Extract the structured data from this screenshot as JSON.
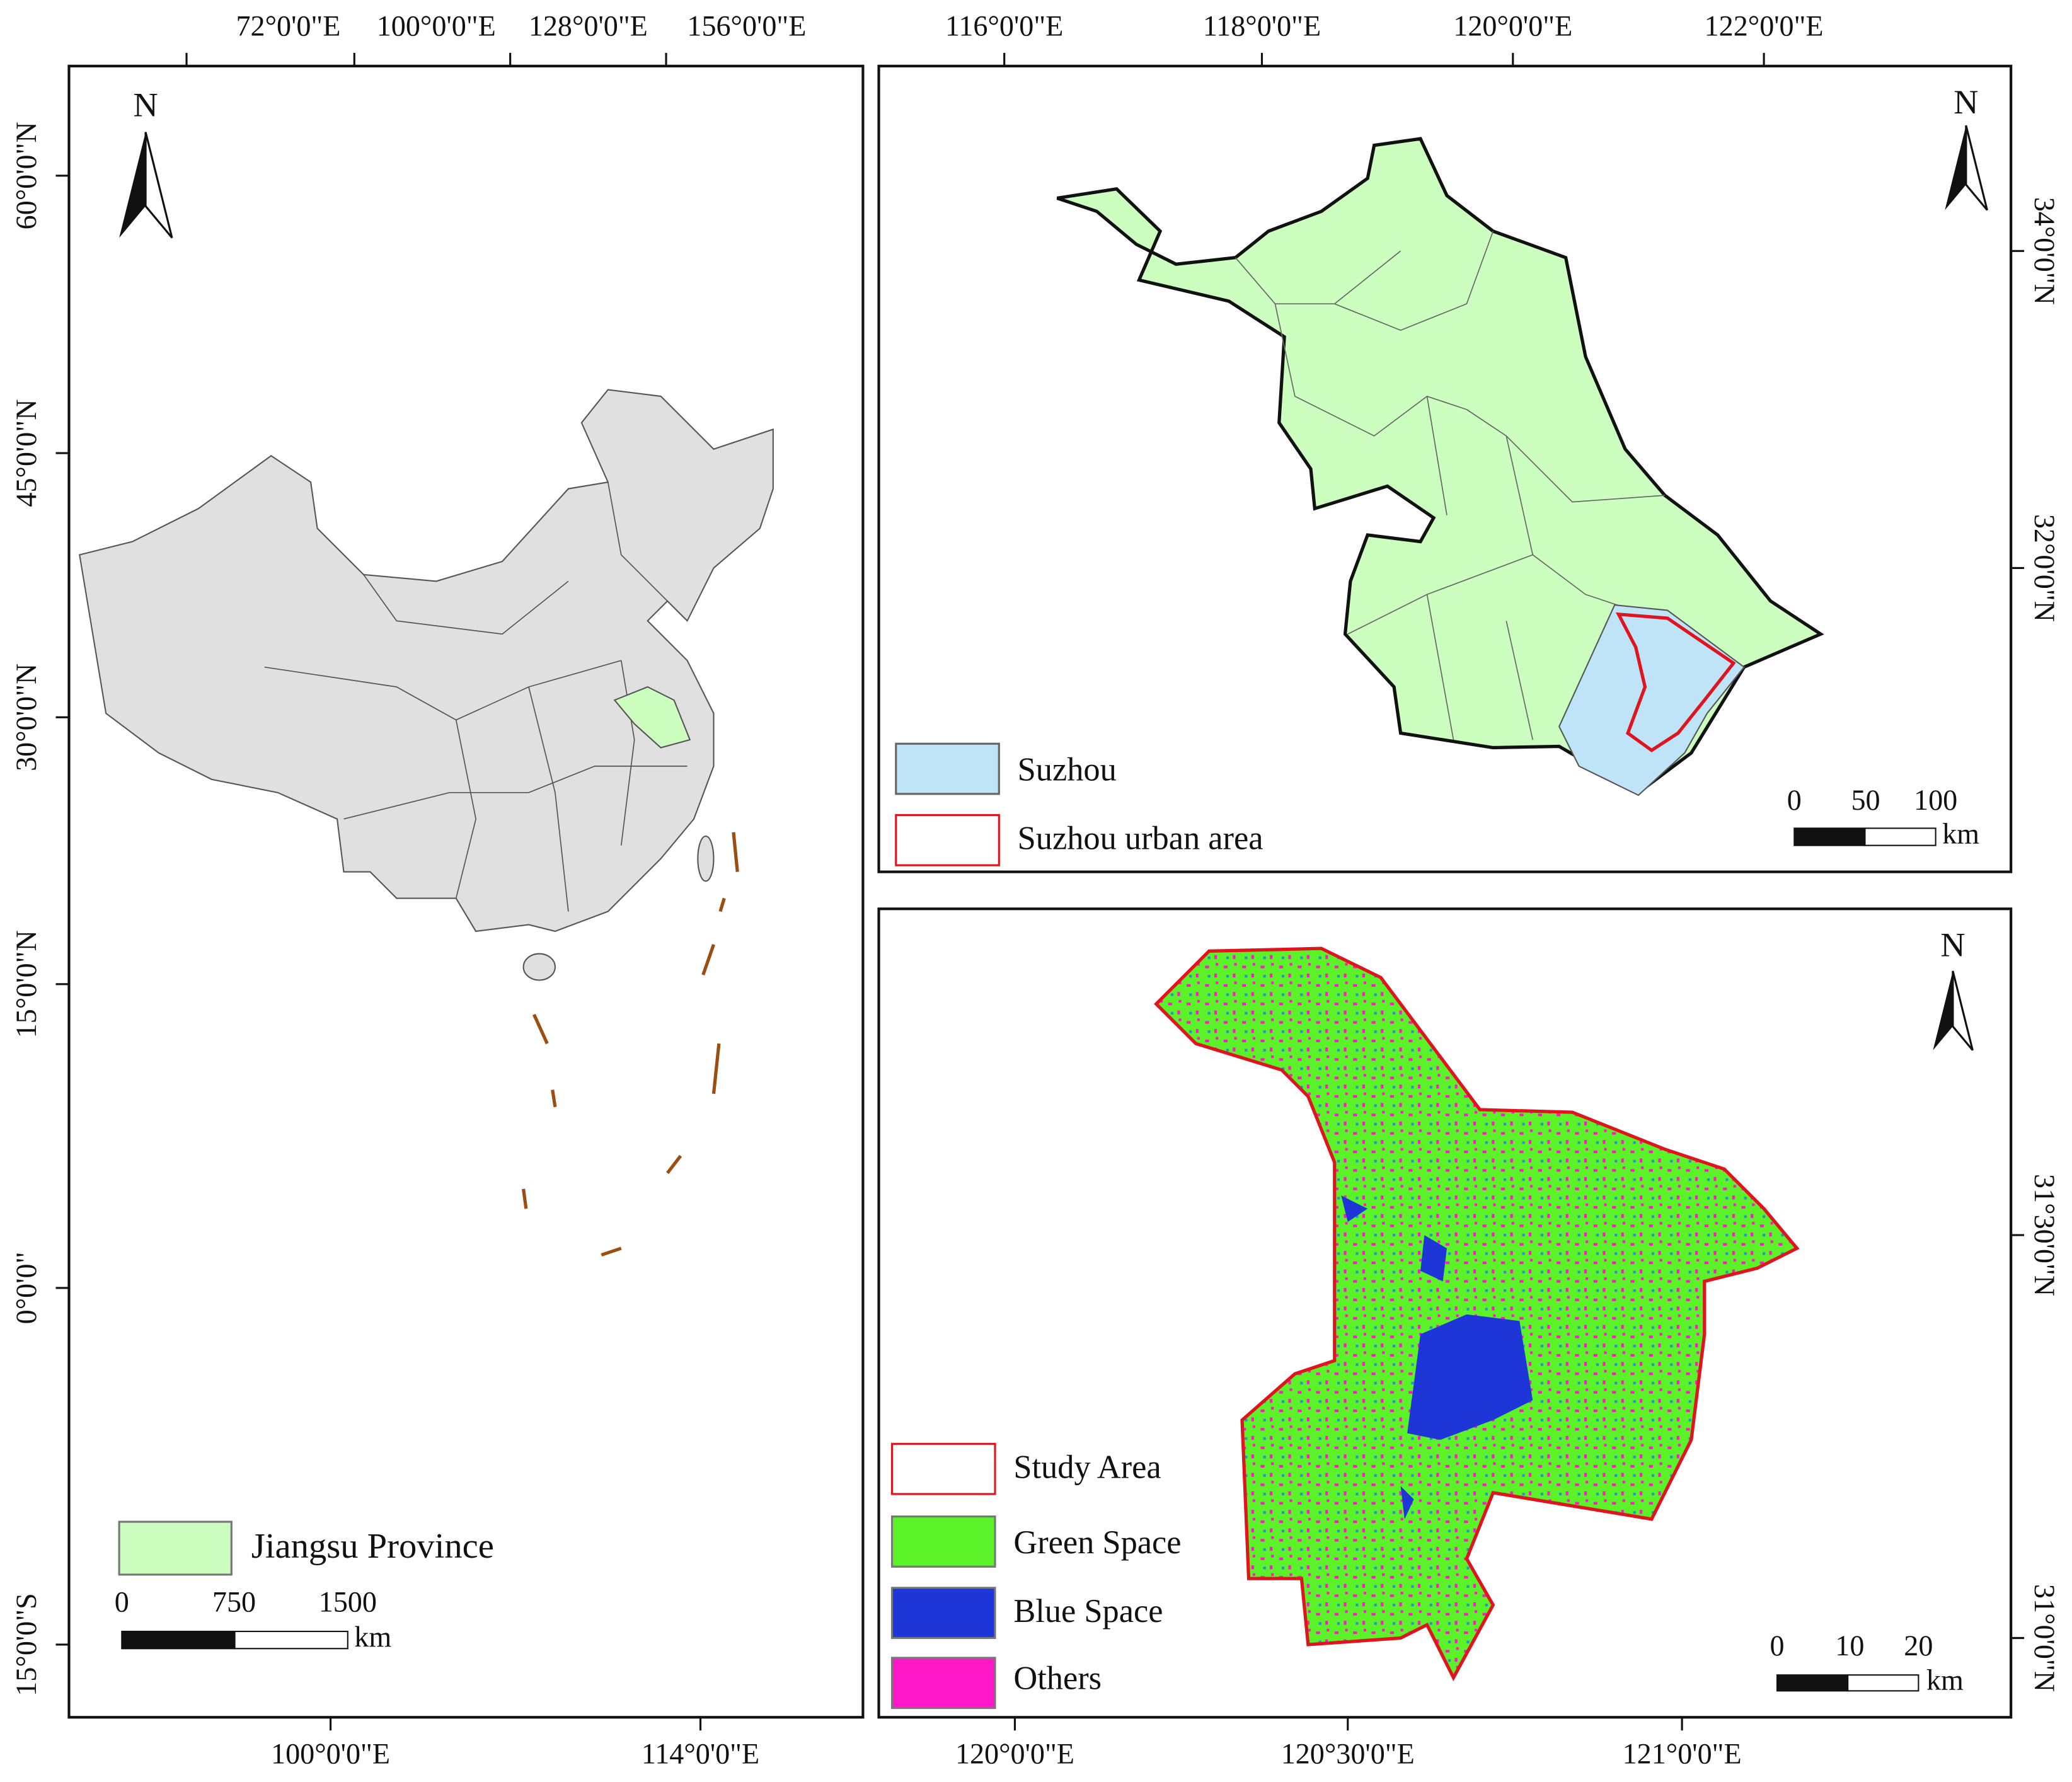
{
  "china_map": {
    "top_axis_labels": [
      "72°0'0\"E",
      "100°0'0\"E",
      "128°0'0\"E",
      "156°0'0\"E"
    ],
    "left_axis_labels": [
      "60°0'0\"N",
      "45°0'0\"N",
      "30°0'0\"N",
      "15°0'0\"N",
      "0°0'0\"",
      "15°0'0\"S"
    ],
    "bottom_axis_labels": [
      "100°0'0\"E",
      "114°0'0\"E"
    ],
    "north_label": "N",
    "legend": [
      "Jiangsu Province"
    ],
    "scale_bar": {
      "labels": [
        "0",
        "750",
        "1500"
      ],
      "unit": "km"
    }
  },
  "jiangsu_map": {
    "top_axis_labels": [
      "116°0'0\"E",
      "118°0'0\"E",
      "120°0'0\"E",
      "122°0'0\"E"
    ],
    "right_axis_labels": [
      "34°0'0\"N",
      "32°0'0\"N"
    ],
    "north_label": "N",
    "legend": [
      "Suzhou",
      "Suzhou urban area"
    ],
    "scale_bar": {
      "labels": [
        "0",
        "50",
        "100"
      ],
      "unit": "km"
    }
  },
  "suzhou_map": {
    "right_axis_labels": [
      "31°30'0\"N",
      "31°0'0\"N"
    ],
    "bottom_axis_labels": [
      "120°0'0\"E",
      "120°30'0\"E",
      "121°0'0\"E"
    ],
    "north_label": "N",
    "legend": [
      "Study Area",
      "Green Space",
      "Blue Space",
      "Others"
    ],
    "scale_bar": {
      "labels": [
        "0",
        "10",
        "20"
      ],
      "unit": "km"
    }
  }
}
